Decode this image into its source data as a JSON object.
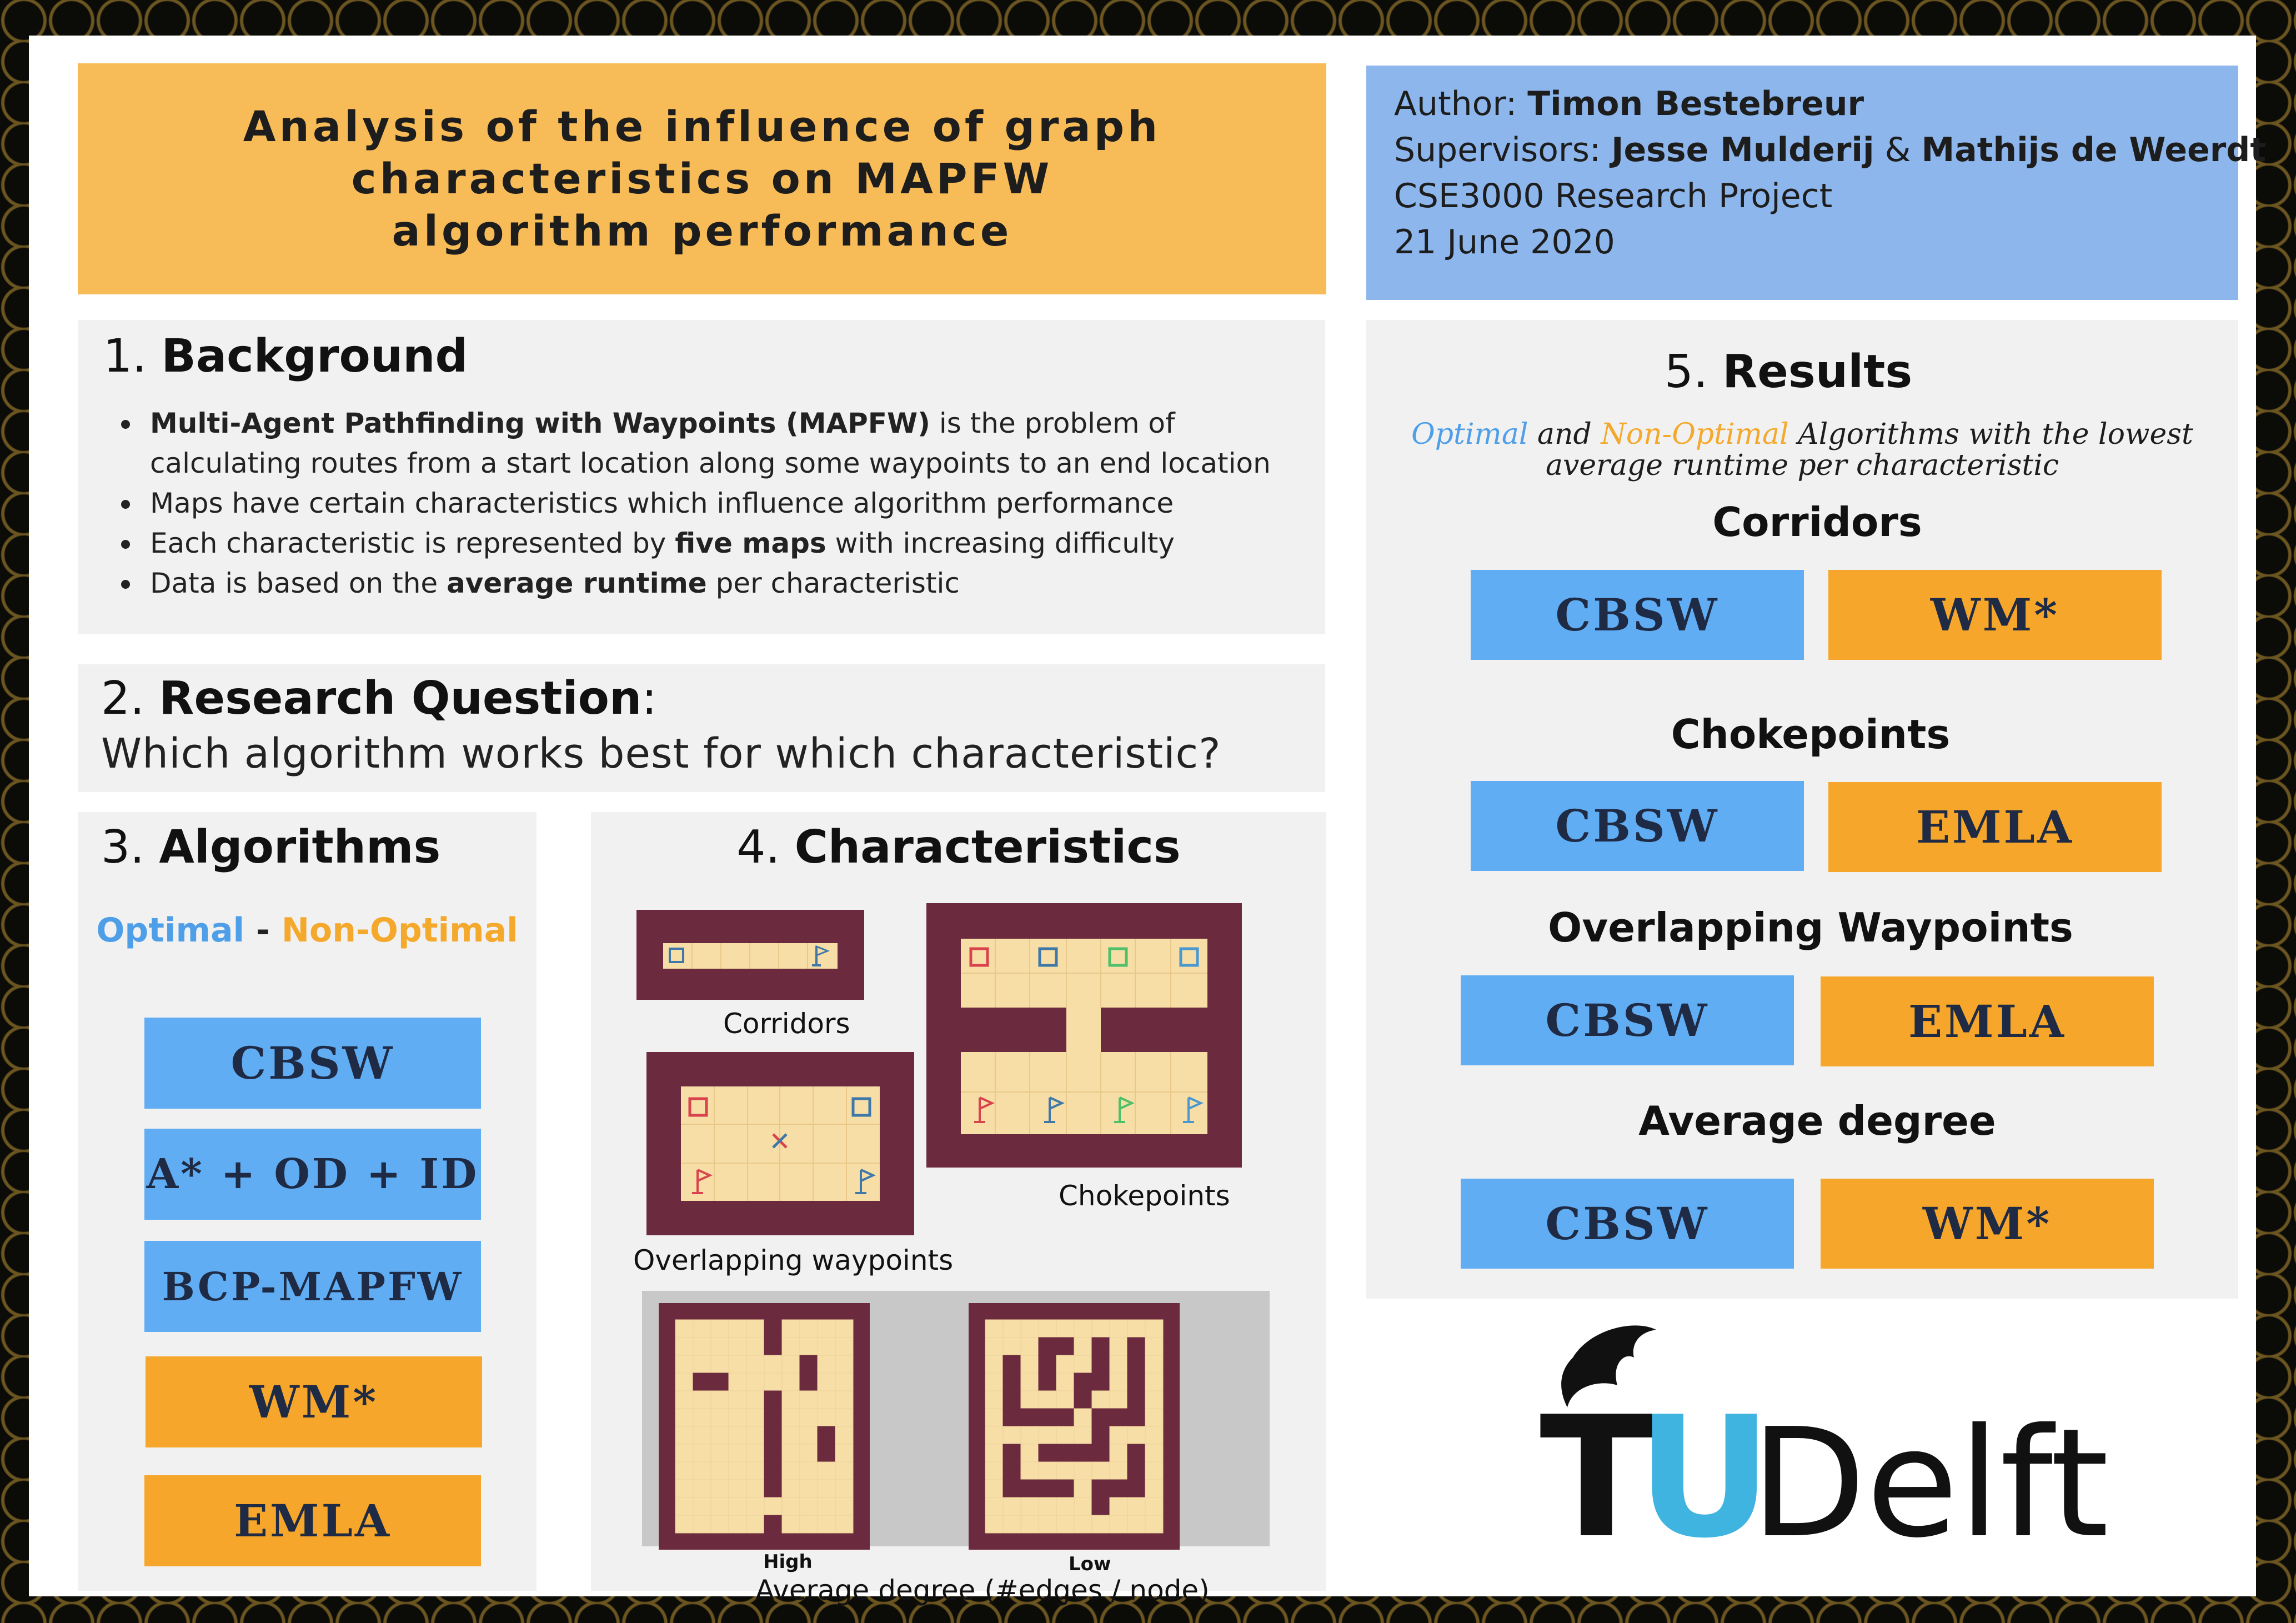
{
  "title": "Analysis of the influence of graph characteristics on MAPFW algorithm performance",
  "author": {
    "author_label": "Author:",
    "author_name": "Timon Bestebreur",
    "supervisors_label": "Supervisors:",
    "supervisor_1": "Jesse Mulderij",
    "amp": "&",
    "supervisor_2": "Mathijs de Weerdt",
    "course": "CSE3000 Research Project",
    "date": "21 June 2020"
  },
  "background": {
    "number": "1.",
    "heading": "Background",
    "bullet_1_bold": "Multi-Agent Pathfinding with Waypoints (MAPFW)",
    "bullet_1_rest": " is the problem of calculating routes from a start location along some waypoints to an end location",
    "bullet_2": "Maps have certain characteristics which influence algorithm performance",
    "bullet_3_pre": "Each characteristic is represented by ",
    "bullet_3_bold": "five maps",
    "bullet_3_post": " with increasing difficulty",
    "bullet_4_pre": "Data is based on the ",
    "bullet_4_bold": "average runtime",
    "bullet_4_post": " per characteristic"
  },
  "research_question": {
    "number": "2.",
    "heading": "Research Question",
    "colon": ":",
    "question": "Which algorithm works best for which characteristic?"
  },
  "algorithms": {
    "number": "3.",
    "heading": "Algorithms",
    "legend_optimal": "Optimal",
    "legend_sep": " - ",
    "legend_nonoptimal": "Non-Optimal",
    "items": [
      "CBSW",
      "A* + OD + ID",
      "BCP-MAPFW",
      "WM*",
      "EMLA"
    ]
  },
  "characteristics": {
    "number": "4.",
    "heading": "Characteristics",
    "corridors": "Corridors",
    "chokepoints": "Chokepoints",
    "overlapping": "Overlapping waypoints",
    "high": "High",
    "low": "Low",
    "avg_degree": "Average degree (#edges / node)"
  },
  "results": {
    "number": "5.",
    "heading": "Results",
    "sub_optimal": "Optimal",
    "sub_and": " and ",
    "sub_nonoptimal": "Non-Optimal",
    "sub_rest": " Algorithms with the lowest average runtime per characteristic",
    "groups": [
      {
        "name": "Corridors",
        "optimal": "CBSW",
        "non_optimal": "WM*"
      },
      {
        "name": "Chokepoints",
        "optimal": "CBSW",
        "non_optimal": "EMLA"
      },
      {
        "name": "Overlapping Waypoints",
        "optimal": "CBSW",
        "non_optimal": "EMLA"
      },
      {
        "name": "Average degree",
        "optimal": "CBSW",
        "non_optimal": "WM*"
      }
    ]
  },
  "logo": {
    "text_t": "T",
    "text_u": "U",
    "text_delft": "Delft"
  },
  "colors": {
    "optimal_blue": "#61adf3",
    "nonoptimal_orange": "#f6a72b",
    "title_orange": "#f7bc57",
    "author_blue": "#8db6ec",
    "map_wall": "#6b2a3e",
    "map_floor": "#f7dea6"
  }
}
